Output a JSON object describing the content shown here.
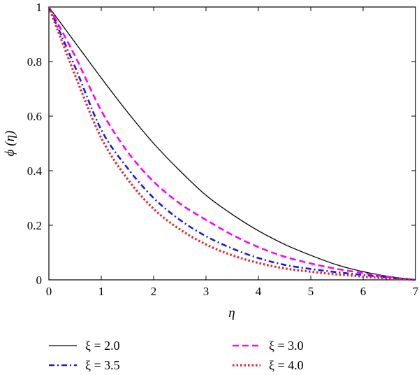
{
  "chart_data": {
    "type": "line",
    "xlabel": "η",
    "ylabel": "ϕ (η)",
    "xlim": [
      0,
      7
    ],
    "ylim": [
      0,
      1
    ],
    "xticks": [
      "0",
      "1",
      "2",
      "3",
      "4",
      "5",
      "6",
      "7"
    ],
    "yticks": [
      "0",
      "0.2",
      "0.4",
      "0.6",
      "0.8",
      "1"
    ],
    "grid": false,
    "legend_position": "bottom",
    "x": [
      0,
      0.5,
      1,
      1.5,
      2,
      2.5,
      3,
      3.5,
      4,
      4.5,
      5,
      5.5,
      6,
      6.5,
      7
    ],
    "series": [
      {
        "name": "ξ = 2.0",
        "color": "#000000",
        "dash": "solid",
        "values": [
          1.0,
          0.87,
          0.74,
          0.615,
          0.5,
          0.4,
          0.31,
          0.24,
          0.18,
          0.13,
          0.09,
          0.055,
          0.03,
          0.012,
          0.0
        ]
      },
      {
        "name": "ξ = 3.0",
        "color": "#ff00ff",
        "dash": "dashed",
        "values": [
          1.0,
          0.82,
          0.62,
          0.47,
          0.36,
          0.28,
          0.22,
          0.165,
          0.12,
          0.085,
          0.06,
          0.04,
          0.025,
          0.01,
          0.0
        ]
      },
      {
        "name": "ξ = 3.5",
        "color": "#1a1adb",
        "dash": "dashdot",
        "values": [
          1.0,
          0.78,
          0.55,
          0.41,
          0.3,
          0.22,
          0.16,
          0.115,
          0.08,
          0.055,
          0.04,
          0.028,
          0.018,
          0.008,
          0.0
        ]
      },
      {
        "name": "ξ = 4.0",
        "color": "#e8202a",
        "dash": "dotted",
        "values": [
          1.0,
          0.75,
          0.52,
          0.37,
          0.26,
          0.185,
          0.13,
          0.09,
          0.062,
          0.042,
          0.03,
          0.02,
          0.012,
          0.005,
          0.0
        ]
      }
    ]
  }
}
